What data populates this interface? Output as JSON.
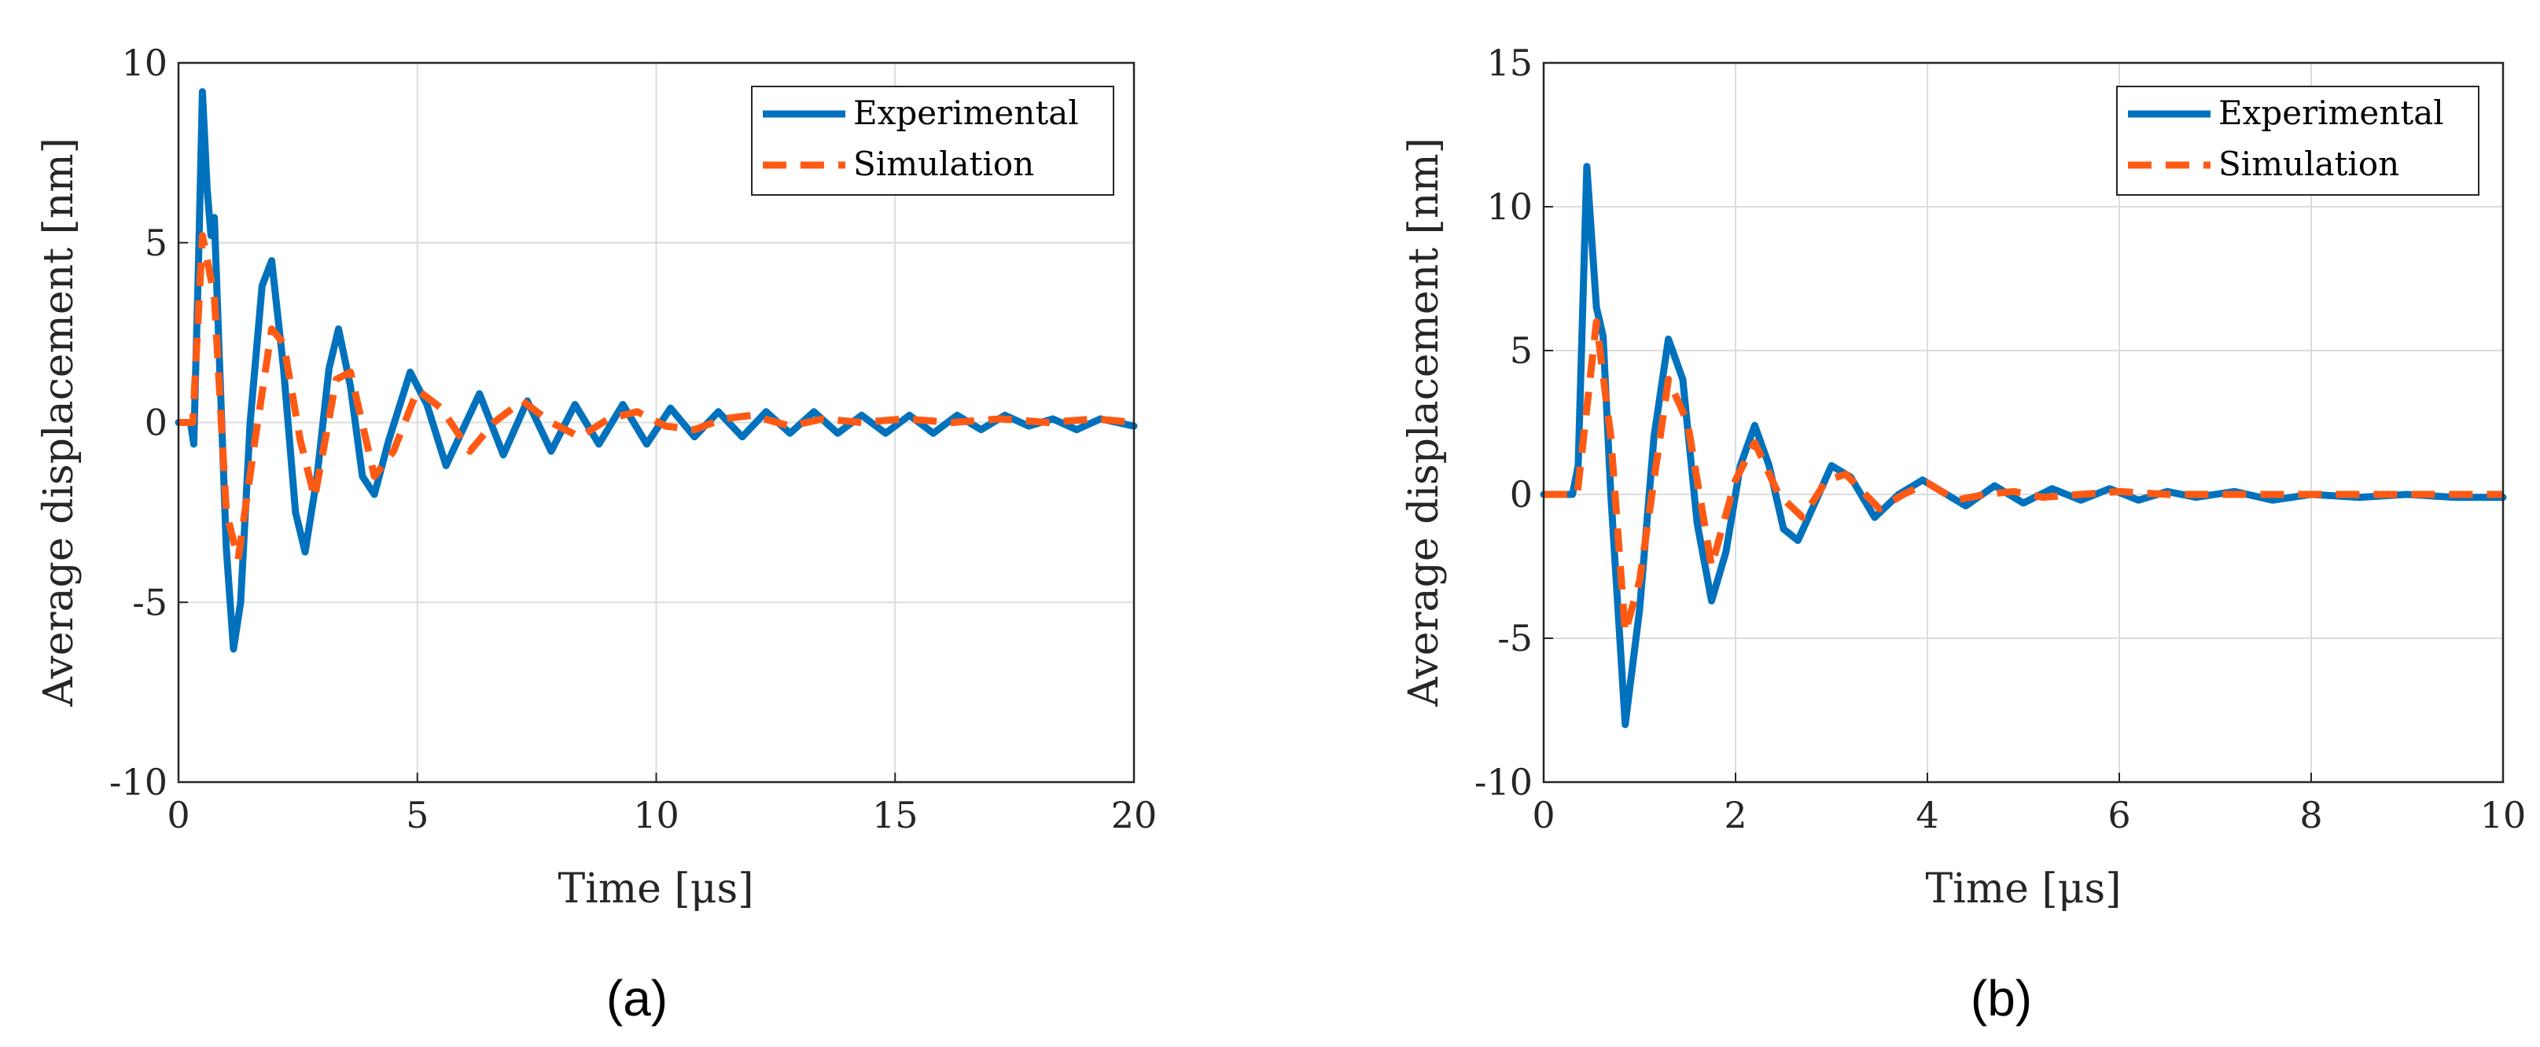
{
  "colors": {
    "experimental": "#0072BD",
    "simulation": "#FF5A14"
  },
  "chart_data": [
    {
      "id": "a",
      "type": "line",
      "caption": "(a)",
      "xlabel": "Time [μs]",
      "ylabel": "Average displacement [nm]",
      "xlim": [
        0,
        20
      ],
      "ylim": [
        -10,
        10
      ],
      "xticks": [
        0,
        5,
        10,
        15,
        20
      ],
      "yticks": [
        -10,
        -5,
        0,
        5,
        10
      ],
      "xtick_labels": [
        "0",
        "5",
        "10",
        "15",
        "20"
      ],
      "ytick_labels": [
        "-10",
        "-5",
        "0",
        "5",
        "10"
      ],
      "grid": true,
      "legend_position": "top-right",
      "series": [
        {
          "name": "Experimental",
          "style": "solid",
          "x": [
            0,
            0.25,
            0.32,
            0.42,
            0.5,
            0.6,
            0.68,
            0.75,
            0.85,
            1.0,
            1.15,
            1.3,
            1.5,
            1.75,
            1.95,
            2.2,
            2.45,
            2.65,
            2.9,
            3.15,
            3.35,
            3.6,
            3.85,
            4.1,
            4.4,
            4.85,
            5.2,
            5.6,
            6.3,
            6.8,
            7.3,
            7.8,
            8.3,
            8.8,
            9.3,
            9.8,
            10.3,
            10.8,
            11.3,
            11.8,
            12.3,
            12.8,
            13.3,
            13.8,
            14.3,
            14.8,
            15.3,
            15.8,
            16.3,
            16.8,
            17.3,
            17.8,
            18.3,
            18.8,
            19.3,
            20
          ],
          "y": [
            0,
            0,
            -0.6,
            4.5,
            9.2,
            6.5,
            5.2,
            5.7,
            2.0,
            -3.5,
            -6.3,
            -5.0,
            0.0,
            3.8,
            4.5,
            1.5,
            -2.5,
            -3.6,
            -1.5,
            1.5,
            2.6,
            1.0,
            -1.5,
            -2.0,
            -0.5,
            1.4,
            0.5,
            -1.2,
            0.8,
            -0.9,
            0.6,
            -0.8,
            0.5,
            -0.6,
            0.5,
            -0.6,
            0.4,
            -0.4,
            0.3,
            -0.4,
            0.3,
            -0.3,
            0.3,
            -0.3,
            0.2,
            -0.3,
            0.2,
            -0.3,
            0.2,
            -0.2,
            0.2,
            -0.1,
            0.1,
            -0.2,
            0.1,
            -0.1
          ]
        },
        {
          "name": "Simulation",
          "style": "dashed",
          "x": [
            0,
            0.3,
            0.5,
            0.75,
            1.0,
            1.25,
            1.6,
            1.95,
            2.2,
            2.55,
            2.85,
            3.3,
            3.6,
            4.1,
            4.5,
            5.0,
            5.5,
            6.1,
            6.6,
            7.2,
            7.8,
            8.4,
            9.0,
            9.6,
            10.2,
            10.8,
            11.4,
            12.0,
            12.8,
            13.5,
            14.3,
            15.2,
            16.2,
            17.2,
            18.2,
            19.2,
            20
          ],
          "y": [
            0,
            0,
            5.2,
            3.5,
            -2.5,
            -3.8,
            -0.5,
            2.6,
            2.2,
            -0.5,
            -2.1,
            1.2,
            1.4,
            -1.5,
            -0.8,
            0.9,
            0.4,
            -0.8,
            0.0,
            0.6,
            0.0,
            -0.4,
            0.1,
            0.3,
            -0.1,
            -0.2,
            0.1,
            0.2,
            -0.1,
            0.1,
            0.0,
            0.1,
            0.0,
            0.1,
            0.0,
            0.1,
            0.0
          ]
        }
      ]
    },
    {
      "id": "b",
      "type": "line",
      "caption": "(b)",
      "xlabel": "Time [μs]",
      "ylabel": "Average displacement [nm]",
      "xlim": [
        0,
        10
      ],
      "ylim": [
        -10,
        15
      ],
      "xticks": [
        0,
        2,
        4,
        6,
        8,
        10
      ],
      "yticks": [
        -10,
        -5,
        0,
        5,
        10,
        15
      ],
      "xtick_labels": [
        "0",
        "2",
        "4",
        "6",
        "8",
        "10"
      ],
      "ytick_labels": [
        "-10",
        "-5",
        "0",
        "5",
        "10",
        "15"
      ],
      "grid": true,
      "legend_position": "top-right",
      "series": [
        {
          "name": "Experimental",
          "style": "solid",
          "x": [
            0,
            0.3,
            0.36,
            0.45,
            0.55,
            0.62,
            0.7,
            0.85,
            1.0,
            1.15,
            1.3,
            1.45,
            1.6,
            1.75,
            1.9,
            2.05,
            2.2,
            2.35,
            2.5,
            2.65,
            2.8,
            3.0,
            3.2,
            3.45,
            3.7,
            3.95,
            4.2,
            4.4,
            4.7,
            5.0,
            5.3,
            5.6,
            5.9,
            6.2,
            6.5,
            6.8,
            7.2,
            7.6,
            8.0,
            8.5,
            9.0,
            9.5,
            10
          ],
          "y": [
            0,
            0,
            1.0,
            11.4,
            6.5,
            5.5,
            0.0,
            -8.0,
            -4.0,
            2.0,
            5.4,
            4.0,
            -1.0,
            -3.7,
            -2.0,
            1.0,
            2.4,
            1.0,
            -1.2,
            -1.6,
            -0.5,
            1.0,
            0.6,
            -0.8,
            0.0,
            0.5,
            0.0,
            -0.4,
            0.3,
            -0.3,
            0.2,
            -0.2,
            0.2,
            -0.2,
            0.1,
            -0.1,
            0.1,
            -0.2,
            0.0,
            -0.1,
            0.0,
            -0.1,
            -0.1
          ]
        },
        {
          "name": "Simulation",
          "style": "dashed",
          "x": [
            0,
            0.35,
            0.55,
            0.7,
            0.85,
            1.0,
            1.3,
            1.5,
            1.75,
            2.0,
            2.2,
            2.45,
            2.7,
            2.95,
            3.15,
            3.5,
            3.75,
            4.0,
            4.3,
            4.6,
            4.9,
            5.2,
            5.6,
            6.0,
            6.5,
            7.0,
            7.5,
            8.0,
            9.0,
            10
          ],
          "y": [
            0,
            0,
            6.0,
            2.0,
            -4.8,
            -3.0,
            4.0,
            2.5,
            -2.5,
            0.5,
            1.8,
            0.0,
            -0.8,
            0.5,
            0.7,
            -0.5,
            0.0,
            0.4,
            -0.2,
            0.0,
            0.1,
            -0.1,
            0.0,
            0.1,
            0.0,
            0.0,
            0.0,
            0.0,
            0.0,
            0.0
          ]
        }
      ]
    }
  ]
}
